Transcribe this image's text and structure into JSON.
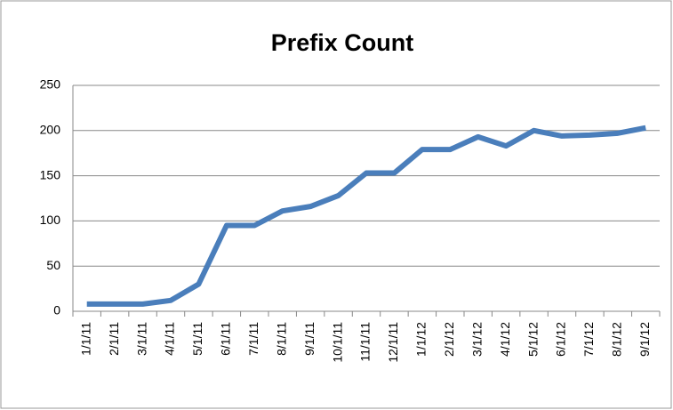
{
  "chart_data": {
    "type": "line",
    "title": "Prefix Count",
    "categories": [
      "1/1/11",
      "2/1/11",
      "3/1/11",
      "4/1/11",
      "5/1/11",
      "6/1/11",
      "7/1/11",
      "8/1/11",
      "9/1/11",
      "10/1/11",
      "11/1/11",
      "12/1/11",
      "1/1/12",
      "2/1/12",
      "3/1/12",
      "4/1/12",
      "5/1/12",
      "6/1/12",
      "7/1/12",
      "8/1/12",
      "9/1/12"
    ],
    "values": [
      8,
      8,
      8,
      12,
      30,
      95,
      95,
      111,
      116,
      128,
      153,
      153,
      179,
      179,
      193,
      183,
      200,
      194,
      195,
      197,
      203
    ],
    "color": "#4a7ebb",
    "ylim": [
      0,
      250
    ],
    "yticks": [
      0,
      50,
      100,
      150,
      200,
      250
    ],
    "grid": true
  }
}
